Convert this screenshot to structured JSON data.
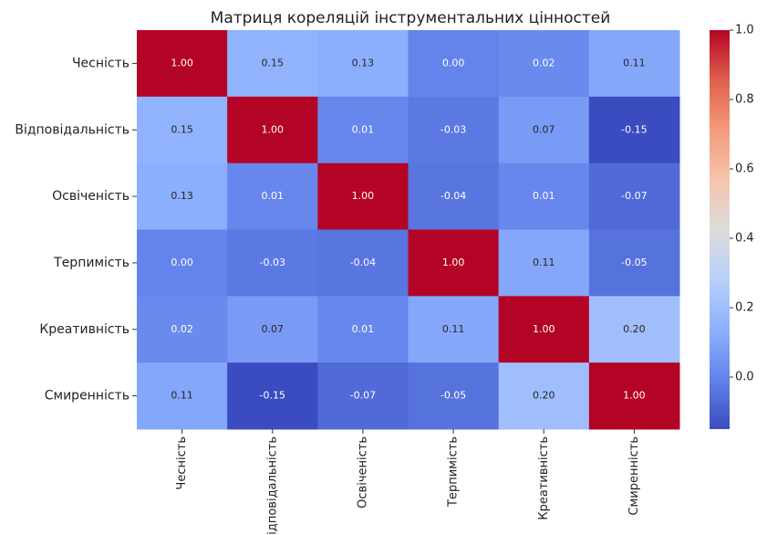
{
  "chart_data": {
    "type": "heatmap",
    "title": "Матриця кореляцій інструментальних цінностей",
    "x_categories": [
      "Чесність",
      "Відповідальність",
      "Освіченість",
      "Терпимість",
      "Креативність",
      "Смиренність"
    ],
    "y_categories": [
      "Чесність",
      "Відповідальність",
      "Освіченість",
      "Терпимість",
      "Креативність",
      "Смиренність"
    ],
    "values": [
      [
        1,
        0.15,
        0.13,
        0,
        0.02,
        0.11
      ],
      [
        0.15,
        1,
        0.01,
        -0.03,
        0.07,
        -0.15
      ],
      [
        0.13,
        0.01,
        1,
        -0.04,
        0.01,
        -0.07
      ],
      [
        0,
        -0.03,
        -0.04,
        1,
        0.11,
        -0.05
      ],
      [
        0.02,
        0.07,
        0.01,
        0.11,
        1,
        0.2
      ],
      [
        0.11,
        -0.15,
        -0.07,
        -0.05,
        0.2,
        1
      ]
    ],
    "value_labels": [
      [
        "1.00",
        "0.15",
        "0.13",
        "0.00",
        "0.02",
        "0.11"
      ],
      [
        "0.15",
        "1.00",
        "0.01",
        "-0.03",
        "0.07",
        "-0.15"
      ],
      [
        "0.13",
        "0.01",
        "1.00",
        "-0.04",
        "0.01",
        "-0.07"
      ],
      [
        "0.00",
        "-0.03",
        "-0.04",
        "1.00",
        "0.11",
        "-0.05"
      ],
      [
        "0.02",
        "0.07",
        "0.01",
        "0.11",
        "1.00",
        "0.20"
      ],
      [
        "0.11",
        "-0.15",
        "-0.07",
        "-0.05",
        "0.20",
        "1.00"
      ]
    ],
    "colormap": "coolwarm",
    "zlim": [
      -0.15,
      1.0
    ],
    "zticks": [
      {
        "value": 0,
        "label": "0.0"
      },
      {
        "value": 0.2,
        "label": "0.2"
      },
      {
        "value": 0.4,
        "label": "0.4"
      },
      {
        "value": 0.6,
        "label": "0.6"
      },
      {
        "value": 0.8,
        "label": "0.8"
      },
      {
        "value": 1.0,
        "label": "1.0"
      }
    ]
  }
}
